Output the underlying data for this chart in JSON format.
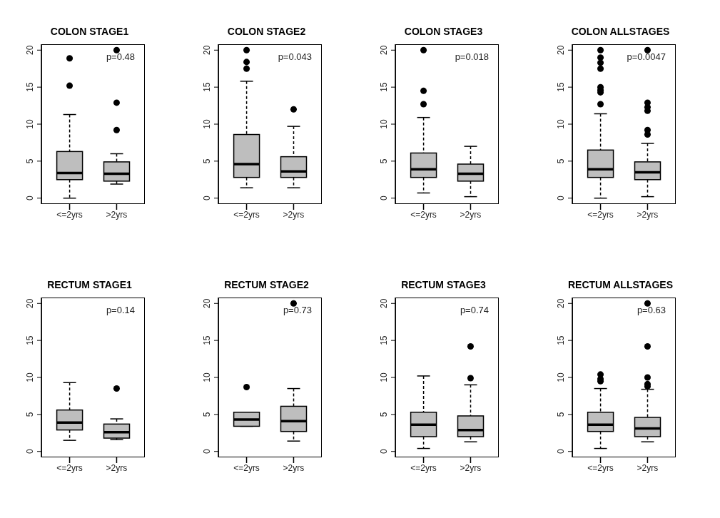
{
  "chart_data": [
    {
      "type": "box",
      "title": "COLON STAGE1",
      "categories": [
        "<=2yrs",
        ">2yrs"
      ],
      "color": "#bebebe",
      "ylim": [
        -0.8,
        20.8
      ],
      "yticks": [
        0,
        5,
        10,
        15,
        20
      ],
      "annotations": [
        "p=0.48"
      ],
      "boxes": [
        {
          "low": 0,
          "q1": 2.5,
          "median": 3.4,
          "q3": 6.3,
          "high": 11.3,
          "outliers": [
            15.2,
            18.9
          ]
        },
        {
          "low": 1.9,
          "q1": 2.3,
          "median": 3.3,
          "q3": 4.9,
          "high": 6.0,
          "outliers": [
            9.2,
            12.9,
            20
          ]
        }
      ]
    },
    {
      "type": "box",
      "title": "COLON STAGE2",
      "categories": [
        "<=2yrs",
        ">2yrs"
      ],
      "color": "#bebebe",
      "ylim": [
        -0.8,
        20.8
      ],
      "yticks": [
        0,
        5,
        10,
        15,
        20
      ],
      "annotations": [
        "p=0.043"
      ],
      "boxes": [
        {
          "low": 1.4,
          "q1": 2.8,
          "median": 4.6,
          "q3": 8.6,
          "high": 15.8,
          "outliers": [
            17.5,
            18.4,
            20
          ]
        },
        {
          "low": 1.4,
          "q1": 2.8,
          "median": 3.6,
          "q3": 5.6,
          "high": 9.7,
          "outliers": [
            12
          ]
        }
      ]
    },
    {
      "type": "box",
      "title": "COLON STAGE3",
      "categories": [
        "<=2yrs",
        ">2yrs"
      ],
      "color": "#bebebe",
      "ylim": [
        -0.8,
        20.8
      ],
      "yticks": [
        0,
        5,
        10,
        15,
        20
      ],
      "annotations": [
        "p=0.018"
      ],
      "boxes": [
        {
          "low": 0.7,
          "q1": 2.8,
          "median": 3.9,
          "q3": 6.1,
          "high": 10.9,
          "outliers": [
            12.7,
            14.5,
            20
          ]
        },
        {
          "low": 0.2,
          "q1": 2.3,
          "median": 3.3,
          "q3": 4.6,
          "high": 7.0
        }
      ]
    },
    {
      "type": "box",
      "title": "COLON ALLSTAGES",
      "categories": [
        "<=2yrs",
        ">2yrs"
      ],
      "color": "#bebebe",
      "ylim": [
        -0.8,
        20.8
      ],
      "yticks": [
        0,
        5,
        10,
        15,
        20
      ],
      "annotations": [
        "p=0.0047"
      ],
      "boxes": [
        {
          "low": 0,
          "q1": 2.8,
          "median": 3.9,
          "q3": 6.5,
          "high": 11.4,
          "outliers": [
            12.7,
            14.3,
            14.6,
            15.0,
            17.5,
            18.3,
            19.0,
            20
          ]
        },
        {
          "low": 0.2,
          "q1": 2.5,
          "median": 3.5,
          "q3": 4.9,
          "high": 7.4,
          "outliers": [
            8.6,
            9.2,
            11.8,
            12.3,
            12.9,
            20
          ]
        }
      ]
    },
    {
      "type": "box",
      "title": "RECTUM STAGE1",
      "categories": [
        "<=2yrs",
        ">2yrs"
      ],
      "color": "#bebebe",
      "ylim": [
        -0.8,
        20.8
      ],
      "yticks": [
        0,
        5,
        10,
        15,
        20
      ],
      "annotations": [
        "p=0.14"
      ],
      "boxes": [
        {
          "low": 1.5,
          "q1": 2.9,
          "median": 3.9,
          "q3": 5.6,
          "high": 9.3
        },
        {
          "low": 1.6,
          "q1": 1.8,
          "median": 2.6,
          "q3": 3.7,
          "high": 4.4,
          "outliers": [
            8.5
          ]
        }
      ]
    },
    {
      "type": "box",
      "title": "RECTUM STAGE2",
      "categories": [
        "<=2yrs",
        ">2yrs"
      ],
      "color": "#bebebe",
      "ylim": [
        -0.8,
        20.8
      ],
      "yticks": [
        0,
        5,
        10,
        15,
        20
      ],
      "annotations": [
        "p=0.73"
      ],
      "boxes": [
        {
          "low": 3.4,
          "q1": 3.4,
          "median": 4.3,
          "q3": 5.3,
          "high": 5.3,
          "outliers": [
            8.7
          ]
        },
        {
          "low": 1.4,
          "q1": 2.7,
          "median": 4.1,
          "q3": 6.1,
          "high": 8.5,
          "outliers": [
            20
          ]
        }
      ]
    },
    {
      "type": "box",
      "title": "RECTUM STAGE3",
      "categories": [
        "<=2yrs",
        ">2yrs"
      ],
      "color": "#bebebe",
      "ylim": [
        -0.8,
        20.8
      ],
      "yticks": [
        0,
        5,
        10,
        15,
        20
      ],
      "annotations": [
        "p=0.74"
      ],
      "boxes": [
        {
          "low": 0.4,
          "q1": 2.0,
          "median": 3.6,
          "q3": 5.3,
          "high": 10.2
        },
        {
          "low": 1.3,
          "q1": 2.0,
          "median": 2.9,
          "q3": 4.8,
          "high": 9.0,
          "outliers": [
            9.9,
            14.2
          ]
        }
      ]
    },
    {
      "type": "box",
      "title": "RECTUM ALLSTAGES",
      "categories": [
        "<=2yrs",
        ">2yrs"
      ],
      "color": "#bebebe",
      "ylim": [
        -0.8,
        20.8
      ],
      "yticks": [
        0,
        5,
        10,
        15,
        20
      ],
      "annotations": [
        "p=0.63"
      ],
      "boxes": [
        {
          "low": 0.4,
          "q1": 2.7,
          "median": 3.6,
          "q3": 5.3,
          "high": 8.5,
          "outliers": [
            9.5,
            9.8,
            10.4
          ]
        },
        {
          "low": 1.3,
          "q1": 2.0,
          "median": 3.1,
          "q3": 4.6,
          "high": 8.4,
          "outliers": [
            8.8,
            9.1,
            10.0,
            14.2,
            20
          ]
        }
      ]
    }
  ]
}
